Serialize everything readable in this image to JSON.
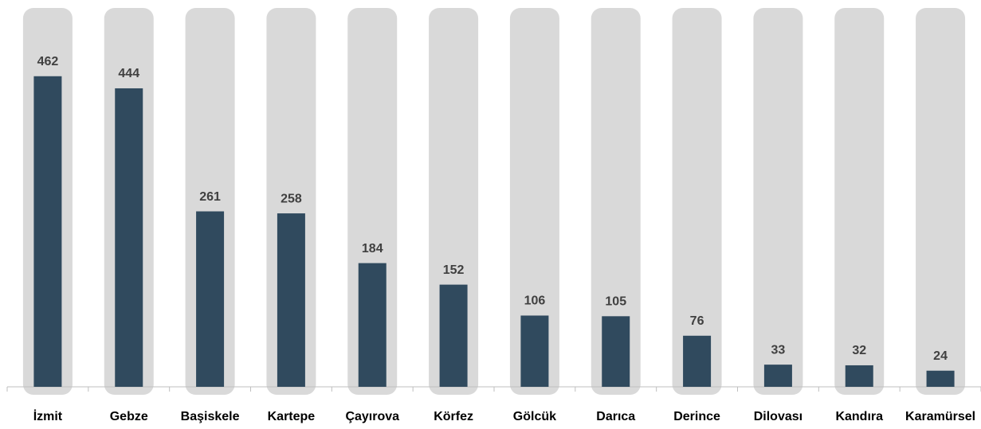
{
  "chart_data": {
    "type": "bar",
    "categories": [
      "İzmit",
      "Gebze",
      "Başiskele",
      "Kartepe",
      "Çayırova",
      "Körfez",
      "Gölcük",
      "Darıca",
      "Derince",
      "Dilovası",
      "Kandıra",
      "Karamürsel"
    ],
    "values": [
      462,
      444,
      261,
      258,
      184,
      152,
      106,
      105,
      76,
      33,
      32,
      24
    ],
    "color": "#304a5e",
    "background_color": "#d9d9d9",
    "ylim": [
      0,
      560
    ]
  }
}
